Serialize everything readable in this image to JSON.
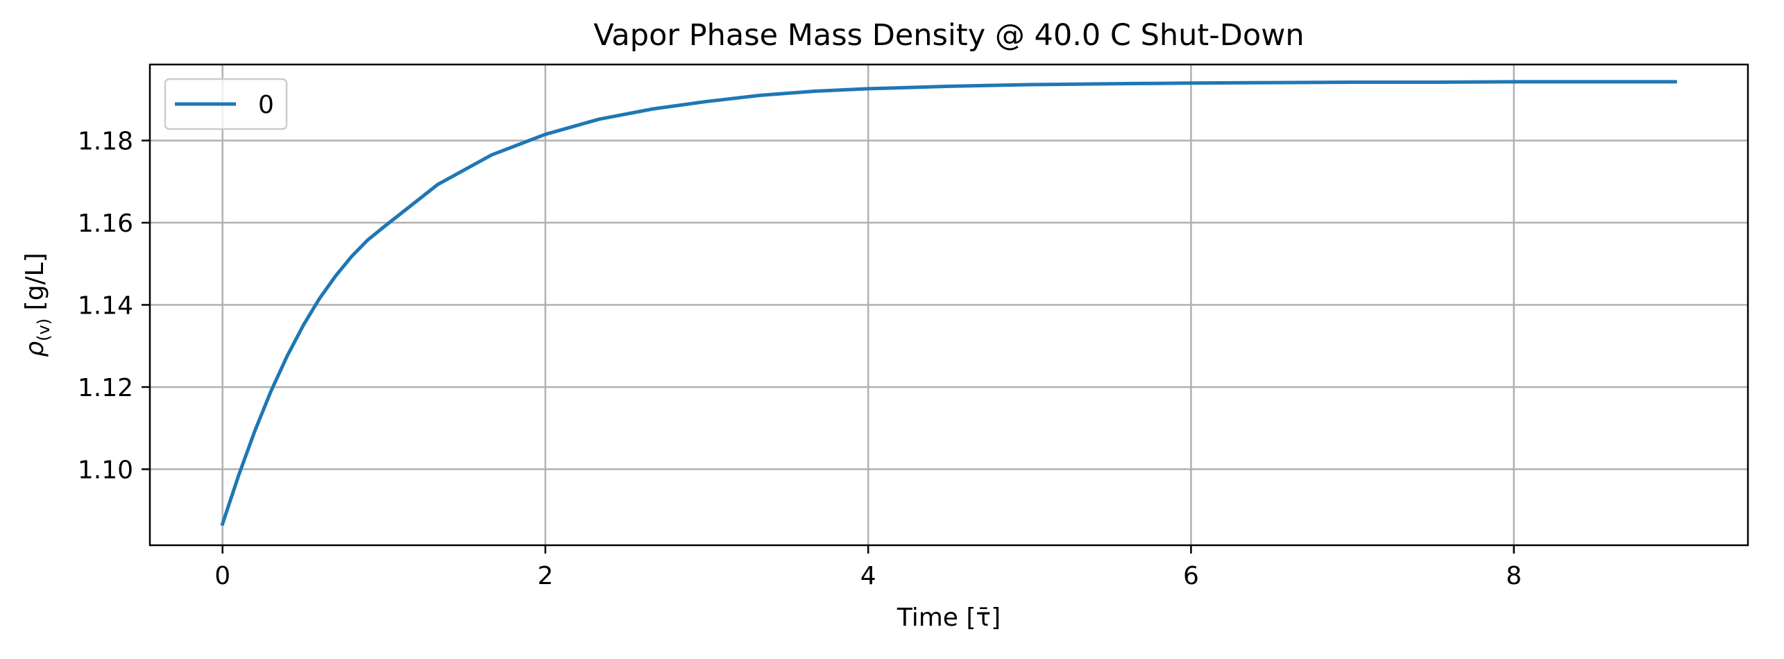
{
  "chart_data": {
    "type": "line",
    "title": "Vapor Phase Mass Density @ 40.0 C Shut-Down",
    "xlabel": "Time [τ̄]",
    "ylabel_main": "ρ",
    "ylabel_sub": "(v)",
    "ylabel_unit": " [g/L]",
    "xlim": [
      -0.45,
      9.45
    ],
    "ylim": [
      1.0815,
      1.1985
    ],
    "x_ticks": [
      0,
      2,
      4,
      6,
      8
    ],
    "x_tick_labels": [
      "0",
      "2",
      "4",
      "6",
      "8"
    ],
    "y_ticks": [
      1.1,
      1.12,
      1.14,
      1.16,
      1.18
    ],
    "y_tick_labels": [
      "1.10",
      "1.12",
      "1.14",
      "1.16",
      "1.18"
    ],
    "grid": true,
    "legend_position": "top-left",
    "series": [
      {
        "name": "0",
        "color": "#1f77b4",
        "x": [
          0,
          0.1,
          0.2,
          0.3,
          0.4,
          0.5,
          0.6,
          0.7,
          0.8,
          0.9,
          1.0,
          1.333,
          1.667,
          2.0,
          2.333,
          2.667,
          3.0,
          3.333,
          3.667,
          4.0,
          4.5,
          5.0,
          5.5,
          6.0,
          6.5,
          7.0,
          7.5,
          8.0,
          8.5,
          9.0
        ],
        "y": [
          1.0867,
          1.0985,
          1.1093,
          1.119,
          1.1275,
          1.135,
          1.1415,
          1.147,
          1.1518,
          1.1558,
          1.159,
          1.1693,
          1.1765,
          1.1815,
          1.1852,
          1.1877,
          1.1895,
          1.191,
          1.192,
          1.1926,
          1.1932,
          1.1936,
          1.1938,
          1.194,
          1.1941,
          1.1942,
          1.1942,
          1.1943,
          1.1943,
          1.1943
        ]
      }
    ]
  }
}
